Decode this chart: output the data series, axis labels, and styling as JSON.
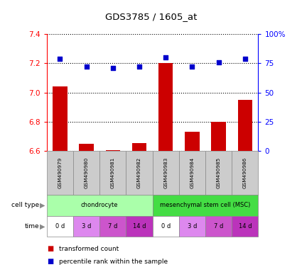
{
  "title": "GDS3785 / 1605_at",
  "samples": [
    "GSM490979",
    "GSM490980",
    "GSM490981",
    "GSM490982",
    "GSM490983",
    "GSM490984",
    "GSM490985",
    "GSM490986"
  ],
  "bar_values": [
    7.04,
    6.65,
    6.605,
    6.655,
    7.2,
    6.73,
    6.8,
    6.95
  ],
  "dot_values": [
    79,
    72,
    71,
    72,
    80,
    72,
    76,
    79
  ],
  "ylim_left": [
    6.6,
    7.4
  ],
  "ylim_right": [
    0,
    100
  ],
  "yticks_left": [
    6.6,
    6.8,
    7.0,
    7.2,
    7.4
  ],
  "yticks_right": [
    0,
    25,
    50,
    75,
    100
  ],
  "ytick_labels_right": [
    "0",
    "25",
    "50",
    "75",
    "100%"
  ],
  "bar_color": "#cc0000",
  "dot_color": "#0000cc",
  "cell_type_groups": [
    {
      "text": "chondrocyte",
      "span": [
        0,
        4
      ],
      "color": "#aaffaa"
    },
    {
      "text": "mesenchymal stem cell (MSC)",
      "span": [
        4,
        8
      ],
      "color": "#44dd44"
    }
  ],
  "time_cells": [
    "0 d",
    "3 d",
    "7 d",
    "14 d",
    "0 d",
    "3 d",
    "7 d",
    "14 d"
  ],
  "time_colors": [
    "#ffffff",
    "#dd88ee",
    "#cc55cc",
    "#bb33bb",
    "#ffffff",
    "#dd88ee",
    "#cc55cc",
    "#bb33bb"
  ],
  "legend_items": [
    {
      "color": "#cc0000",
      "label": "transformed count"
    },
    {
      "color": "#0000cc",
      "label": "percentile rank within the sample"
    }
  ],
  "background_color": "#ffffff"
}
